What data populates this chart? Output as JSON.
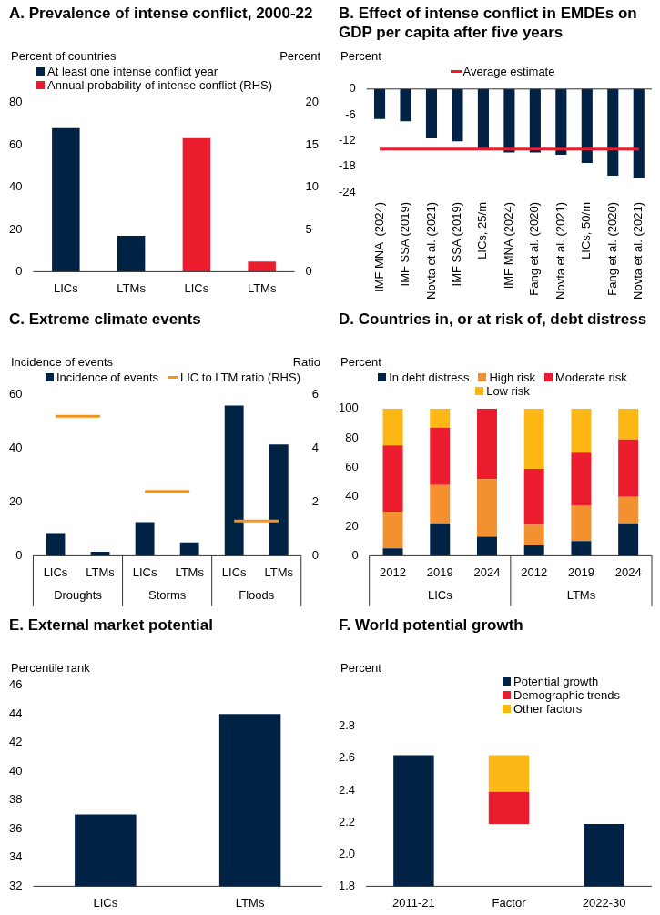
{
  "chart_data": [
    {
      "type": "bar",
      "title": "A. Prevalence of intense conflict, 2000-22",
      "ylabel": "Percent of countries",
      "y2label": "Percent",
      "categories": [
        "LICs",
        "LTMs",
        "LICs",
        "LTMs"
      ],
      "series": [
        {
          "name": "At least one intense conflict year",
          "color": "#002345",
          "values": [
            68,
            17,
            null,
            null
          ]
        },
        {
          "name": "Annual probability of intense conflict (RHS)",
          "color": "#eb1c2d",
          "axis": "y2",
          "values": [
            null,
            null,
            15.8,
            1.2
          ]
        }
      ],
      "ylim": [
        0,
        80
      ],
      "yticks": [
        0,
        20,
        40,
        60,
        80
      ],
      "y2lim": [
        0,
        20
      ],
      "y2ticks": [
        0,
        5,
        10,
        15,
        20
      ],
      "legend": "top left"
    },
    {
      "type": "bar",
      "title": "B. Effect of intense conflict in EMDEs on GDP per capita after five years",
      "ylabel": "Percent",
      "categories": [
        "IMF MNA  (2024)",
        "IMF SSA (2019)",
        "Novta et al. (2021)",
        "IMF SSA (2019)",
        "LICs, 25/m",
        "IMF MNA (2024)",
        "Fang et al. (2020)",
        "Novta et al. (2021)",
        "LICs, 50/m",
        "Fang et al. (2020)",
        "Novta et al. (2021)"
      ],
      "series": [
        {
          "color": "#002345",
          "values": [
            -7,
            -7.5,
            -11.5,
            -12.2,
            -14,
            -14.8,
            -14.8,
            -15.3,
            -17.2,
            -20.2,
            -20.8
          ]
        },
        {
          "name": "Average estimate",
          "type": "line",
          "color": "#eb1c2d",
          "values": [
            -14,
            -14,
            -14,
            -14,
            -14,
            -14,
            -14,
            -14,
            -14,
            -14,
            -14
          ]
        }
      ],
      "ylim": [
        -24,
        0
      ],
      "yticks": [
        -24,
        -18,
        -12,
        -6,
        0
      ],
      "legend": "top",
      "marker": "none"
    },
    {
      "type": "bar",
      "title": "C. Extreme climate events",
      "ylabel": "Incidence of events",
      "y2label": "Ratio",
      "categories": [
        "LICs",
        "LTMs",
        "LICs",
        "LTMs",
        "LICs",
        "LTMs"
      ],
      "annotations": [
        "Droughts",
        "Storms",
        "Floods"
      ],
      "series": [
        {
          "name": "Incidence of events",
          "color": "#002345",
          "values": [
            8.5,
            1.5,
            12.5,
            5,
            56,
            41.5
          ]
        },
        {
          "name": "LIC to LTM ratio (RHS)",
          "type": "line",
          "axis": "y2",
          "color": "#f7941d",
          "values": [
            5.2,
            5.2,
            2.4,
            2.4,
            1.3,
            1.3
          ]
        }
      ],
      "ylim": [
        0,
        60
      ],
      "yticks": [
        0,
        20,
        40,
        60
      ],
      "y2lim": [
        0,
        6
      ],
      "y2ticks": [
        0,
        2,
        4,
        6
      ],
      "legend": "top",
      "marker": "none"
    },
    {
      "type": "bar",
      "title": "D. Countries in, or at risk of, debt distress",
      "ylabel": "Percent",
      "categories": [
        "2012",
        "2019",
        "2024",
        "2012",
        "2019",
        "2024"
      ],
      "annotations": [
        "LICs",
        "LTMs"
      ],
      "stacked": true,
      "series": [
        {
          "name": "In debt distress",
          "color": "#002345",
          "values": [
            5,
            22,
            13,
            7,
            10,
            22
          ]
        },
        {
          "name": "High risk",
          "color": "#f39130",
          "values": [
            25,
            26,
            39,
            14,
            24,
            18
          ]
        },
        {
          "name": "Moderate risk",
          "color": "#eb1c2d",
          "values": [
            45,
            39,
            48,
            38,
            36,
            39
          ]
        },
        {
          "name": "Low risk",
          "color": "#fdb714",
          "values": [
            25,
            13,
            0,
            41,
            30,
            21
          ]
        }
      ],
      "ylim": [
        0,
        100
      ],
      "yticks": [
        0,
        20,
        40,
        60,
        80,
        100
      ],
      "legend": "top"
    },
    {
      "type": "bar",
      "title": "E. External market potential",
      "ylabel": "Percentile rank",
      "categories": [
        "LICs",
        "LTMs"
      ],
      "series": [
        {
          "color": "#002345",
          "values": [
            37,
            44
          ]
        }
      ],
      "ylim": [
        32,
        46
      ],
      "yticks": [
        32,
        34,
        36,
        38,
        40,
        42,
        44,
        46
      ]
    },
    {
      "type": "bar",
      "title": "F. World potential growth",
      "ylabel": "Percent",
      "categories": [
        "2011-21",
        "Factor",
        "2022-30"
      ],
      "series": [
        {
          "name": "Potential growth",
          "color": "#002345",
          "values": [
            2.62,
            null,
            2.19
          ]
        },
        {
          "name": "Demographic trends",
          "color": "#eb1c2d",
          "values": [
            null,
            0.2,
            null
          ],
          "base": [
            null,
            2.19,
            null
          ]
        },
        {
          "name": "Other factors",
          "color": "#fdb714",
          "values": [
            null,
            0.23,
            null
          ],
          "base": [
            null,
            2.39,
            null
          ]
        }
      ],
      "ylim": [
        1.8,
        2.8
      ],
      "yticks": [
        1.8,
        {
          "value": 2,
          "label": "2.0"
        },
        2.2,
        2.4,
        2.6,
        2.8
      ],
      "legend": "top right"
    }
  ]
}
